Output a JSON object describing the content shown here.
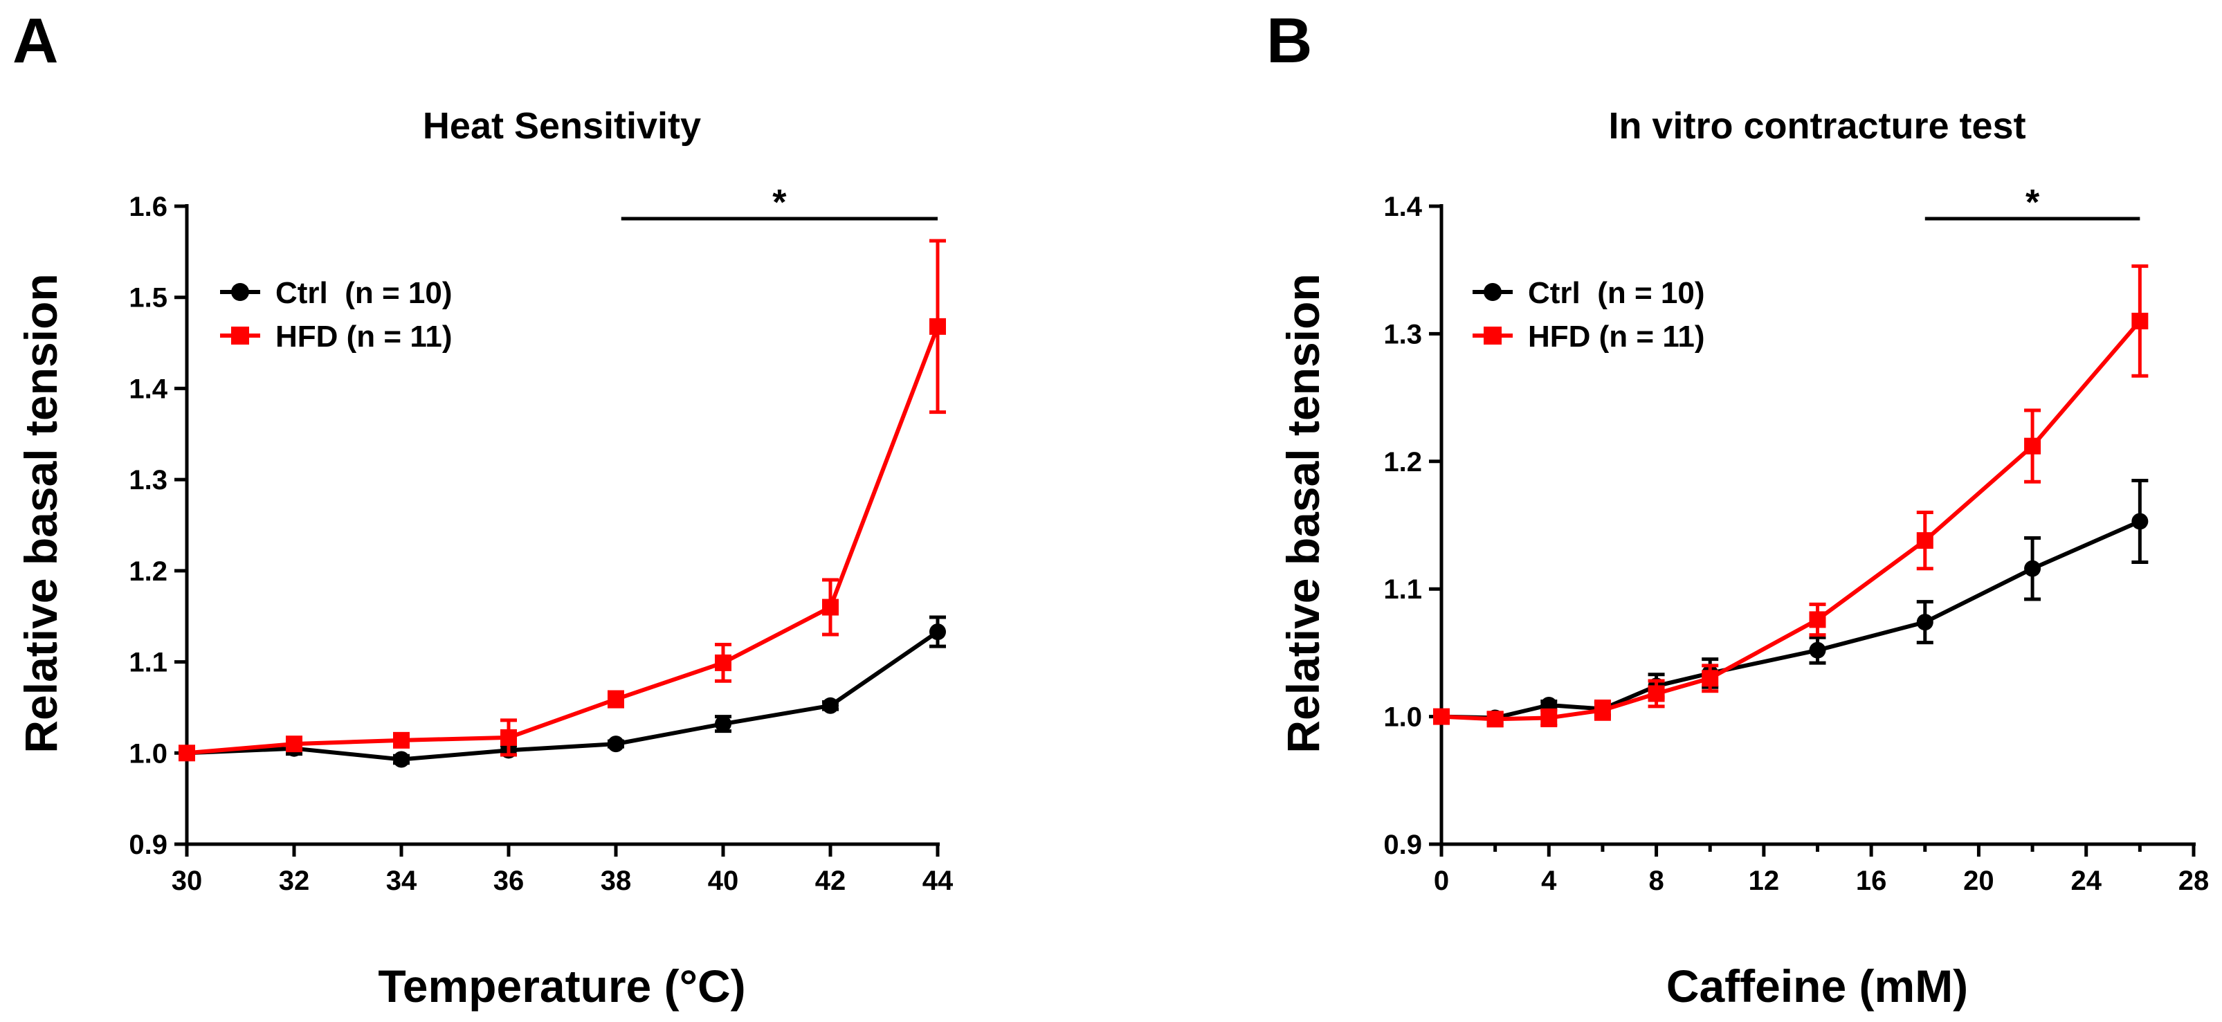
{
  "chart_data": [
    {
      "type": "line",
      "panel_letter": "A",
      "title": "Heat Sensitivity",
      "xlabel": "Temperature (°C)",
      "ylabel": "Relative basal tension",
      "xlim": [
        30,
        44
      ],
      "ylim": [
        0.9,
        1.6
      ],
      "xticks": [
        "30",
        "32",
        "34",
        "36",
        "38",
        "40",
        "42",
        "44"
      ],
      "xtick_values": [
        30,
        32,
        34,
        36,
        38,
        40,
        42,
        44
      ],
      "yticks": [
        "0.9",
        "1.0",
        "1.1",
        "1.2",
        "1.3",
        "1.4",
        "1.5",
        "1.6"
      ],
      "ytick_values": [
        0.9,
        1.0,
        1.1,
        1.2,
        1.3,
        1.4,
        1.5,
        1.6
      ],
      "legend_position": "top-left",
      "series": [
        {
          "name": "Ctrl  (n = 10)",
          "color": "#000000",
          "marker": "circle",
          "x": [
            30,
            32,
            34,
            36,
            38,
            40,
            42,
            44
          ],
          "y": [
            1.0,
            1.005,
            0.993,
            1.003,
            1.01,
            1.032,
            1.052,
            1.133
          ],
          "err": [
            0.003,
            0.006,
            0.004,
            0.005,
            0.003,
            0.008,
            0.004,
            0.016
          ]
        },
        {
          "name": "HFD (n = 11)",
          "color": "#ff0000",
          "marker": "square",
          "x": [
            30,
            32,
            34,
            36,
            38,
            40,
            42,
            44
          ],
          "y": [
            1.0,
            1.01,
            1.014,
            1.017,
            1.059,
            1.099,
            1.16,
            1.468
          ],
          "err": [
            0.003,
            0.006,
            0.007,
            0.019,
            0.008,
            0.02,
            0.03,
            0.094
          ]
        }
      ],
      "significance": {
        "label": "*",
        "x_start": 38.1,
        "x_end": 44
      }
    },
    {
      "type": "line",
      "panel_letter": "B",
      "title": "In vitro contracture test",
      "xlabel": "Caffeine (mM)",
      "ylabel": "Relative basal tension",
      "xlim": [
        0,
        28
      ],
      "ylim": [
        0.9,
        1.4
      ],
      "xticks": [
        "0",
        "4",
        "8",
        "12",
        "16",
        "20",
        "24",
        "28"
      ],
      "xtick_values": [
        0,
        4,
        8,
        12,
        16,
        20,
        24,
        28
      ],
      "minor_xtick_values": [
        2,
        6,
        10,
        14,
        18,
        22,
        26
      ],
      "yticks": [
        "0.9",
        "1.0",
        "1.1",
        "1.2",
        "1.3",
        "1.4"
      ],
      "ytick_values": [
        0.9,
        1.0,
        1.1,
        1.2,
        1.3,
        1.4
      ],
      "legend_position": "top-left",
      "series": [
        {
          "name": "Ctrl  (n = 10)",
          "color": "#000000",
          "marker": "circle",
          "x": [
            0,
            2,
            4,
            6,
            8,
            10,
            14,
            18,
            22,
            26
          ],
          "y": [
            1.0,
            0.999,
            1.009,
            1.006,
            1.024,
            1.034,
            1.052,
            1.074,
            1.116,
            1.153
          ],
          "err": [
            0.003,
            0.004,
            0.003,
            0.005,
            0.009,
            0.011,
            0.01,
            0.016,
            0.024,
            0.032
          ]
        },
        {
          "name": "HFD (n = 11)",
          "color": "#ff0000",
          "marker": "square",
          "x": [
            0,
            2,
            4,
            6,
            8,
            10,
            14,
            18,
            22,
            26
          ],
          "y": [
            1.0,
            0.998,
            0.999,
            1.005,
            1.018,
            1.03,
            1.076,
            1.138,
            1.212,
            1.31
          ],
          "err": [
            0.003,
            0.005,
            0.006,
            0.007,
            0.01,
            0.01,
            0.012,
            0.022,
            0.028,
            0.043
          ]
        }
      ],
      "significance": {
        "label": "*",
        "x_start": 18,
        "x_end": 26
      }
    }
  ]
}
